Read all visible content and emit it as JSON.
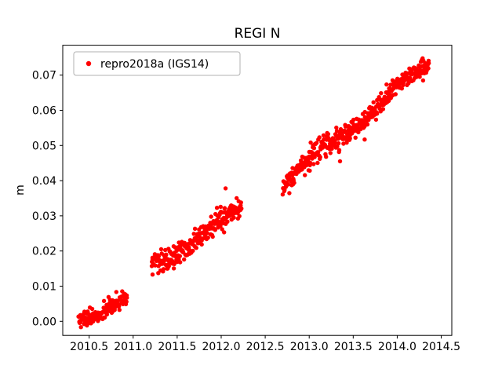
{
  "figure": {
    "background": "#ffffff"
  },
  "chart_data": {
    "type": "scatter",
    "title": "REGI N",
    "xlabel": "",
    "ylabel": "m",
    "xlim": [
      2010.2,
      2014.62
    ],
    "ylim": [
      -0.004,
      0.0785
    ],
    "xticks": [
      2010.5,
      2011.0,
      2011.5,
      2012.0,
      2012.5,
      2013.0,
      2013.5,
      2014.0,
      2014.5
    ],
    "xtick_labels": [
      "2010.5",
      "2011.0",
      "2011.5",
      "2012.0",
      "2012.5",
      "2013.0",
      "2013.5",
      "2014.0",
      "2014.5"
    ],
    "yticks": [
      0.0,
      0.01,
      0.02,
      0.03,
      0.04,
      0.05,
      0.06,
      0.07
    ],
    "ytick_labels": [
      "0.00",
      "0.01",
      "0.02",
      "0.03",
      "0.04",
      "0.05",
      "0.06",
      "0.07"
    ],
    "grid": false,
    "legend": {
      "label": "repro2018a (IGS14)",
      "position": "upper left",
      "marker_color": "#ff0000"
    },
    "series": [
      {
        "name": "repro2018a (IGS14)",
        "color": "#ff0000",
        "marker": "dot",
        "marker_radius": 2.7,
        "seed": 20181,
        "annual_amplitude": 0.0013,
        "annual_phase": 0.2,
        "segments": [
          {
            "x_start": 2010.38,
            "x_end": 2010.93,
            "y_start": 0.0012,
            "y_end": 0.0058,
            "n_points": 140,
            "noise_std": 0.0012
          },
          {
            "x_start": 2011.21,
            "x_end": 2012.23,
            "y_start": 0.016,
            "y_end": 0.0315,
            "n_points": 260,
            "noise_std": 0.0015
          },
          {
            "x_start": 2012.7,
            "x_end": 2014.36,
            "y_start": 0.039,
            "y_end": 0.0735,
            "n_points": 420,
            "noise_std": 0.0015
          }
        ],
        "outliers": [
          [
            2011.22,
            0.0133
          ],
          [
            2012.05,
            0.0378
          ],
          [
            2013.05,
            0.0447
          ],
          [
            2013.35,
            0.0455
          ],
          [
            2013.63,
            0.0517
          ]
        ]
      }
    ]
  }
}
